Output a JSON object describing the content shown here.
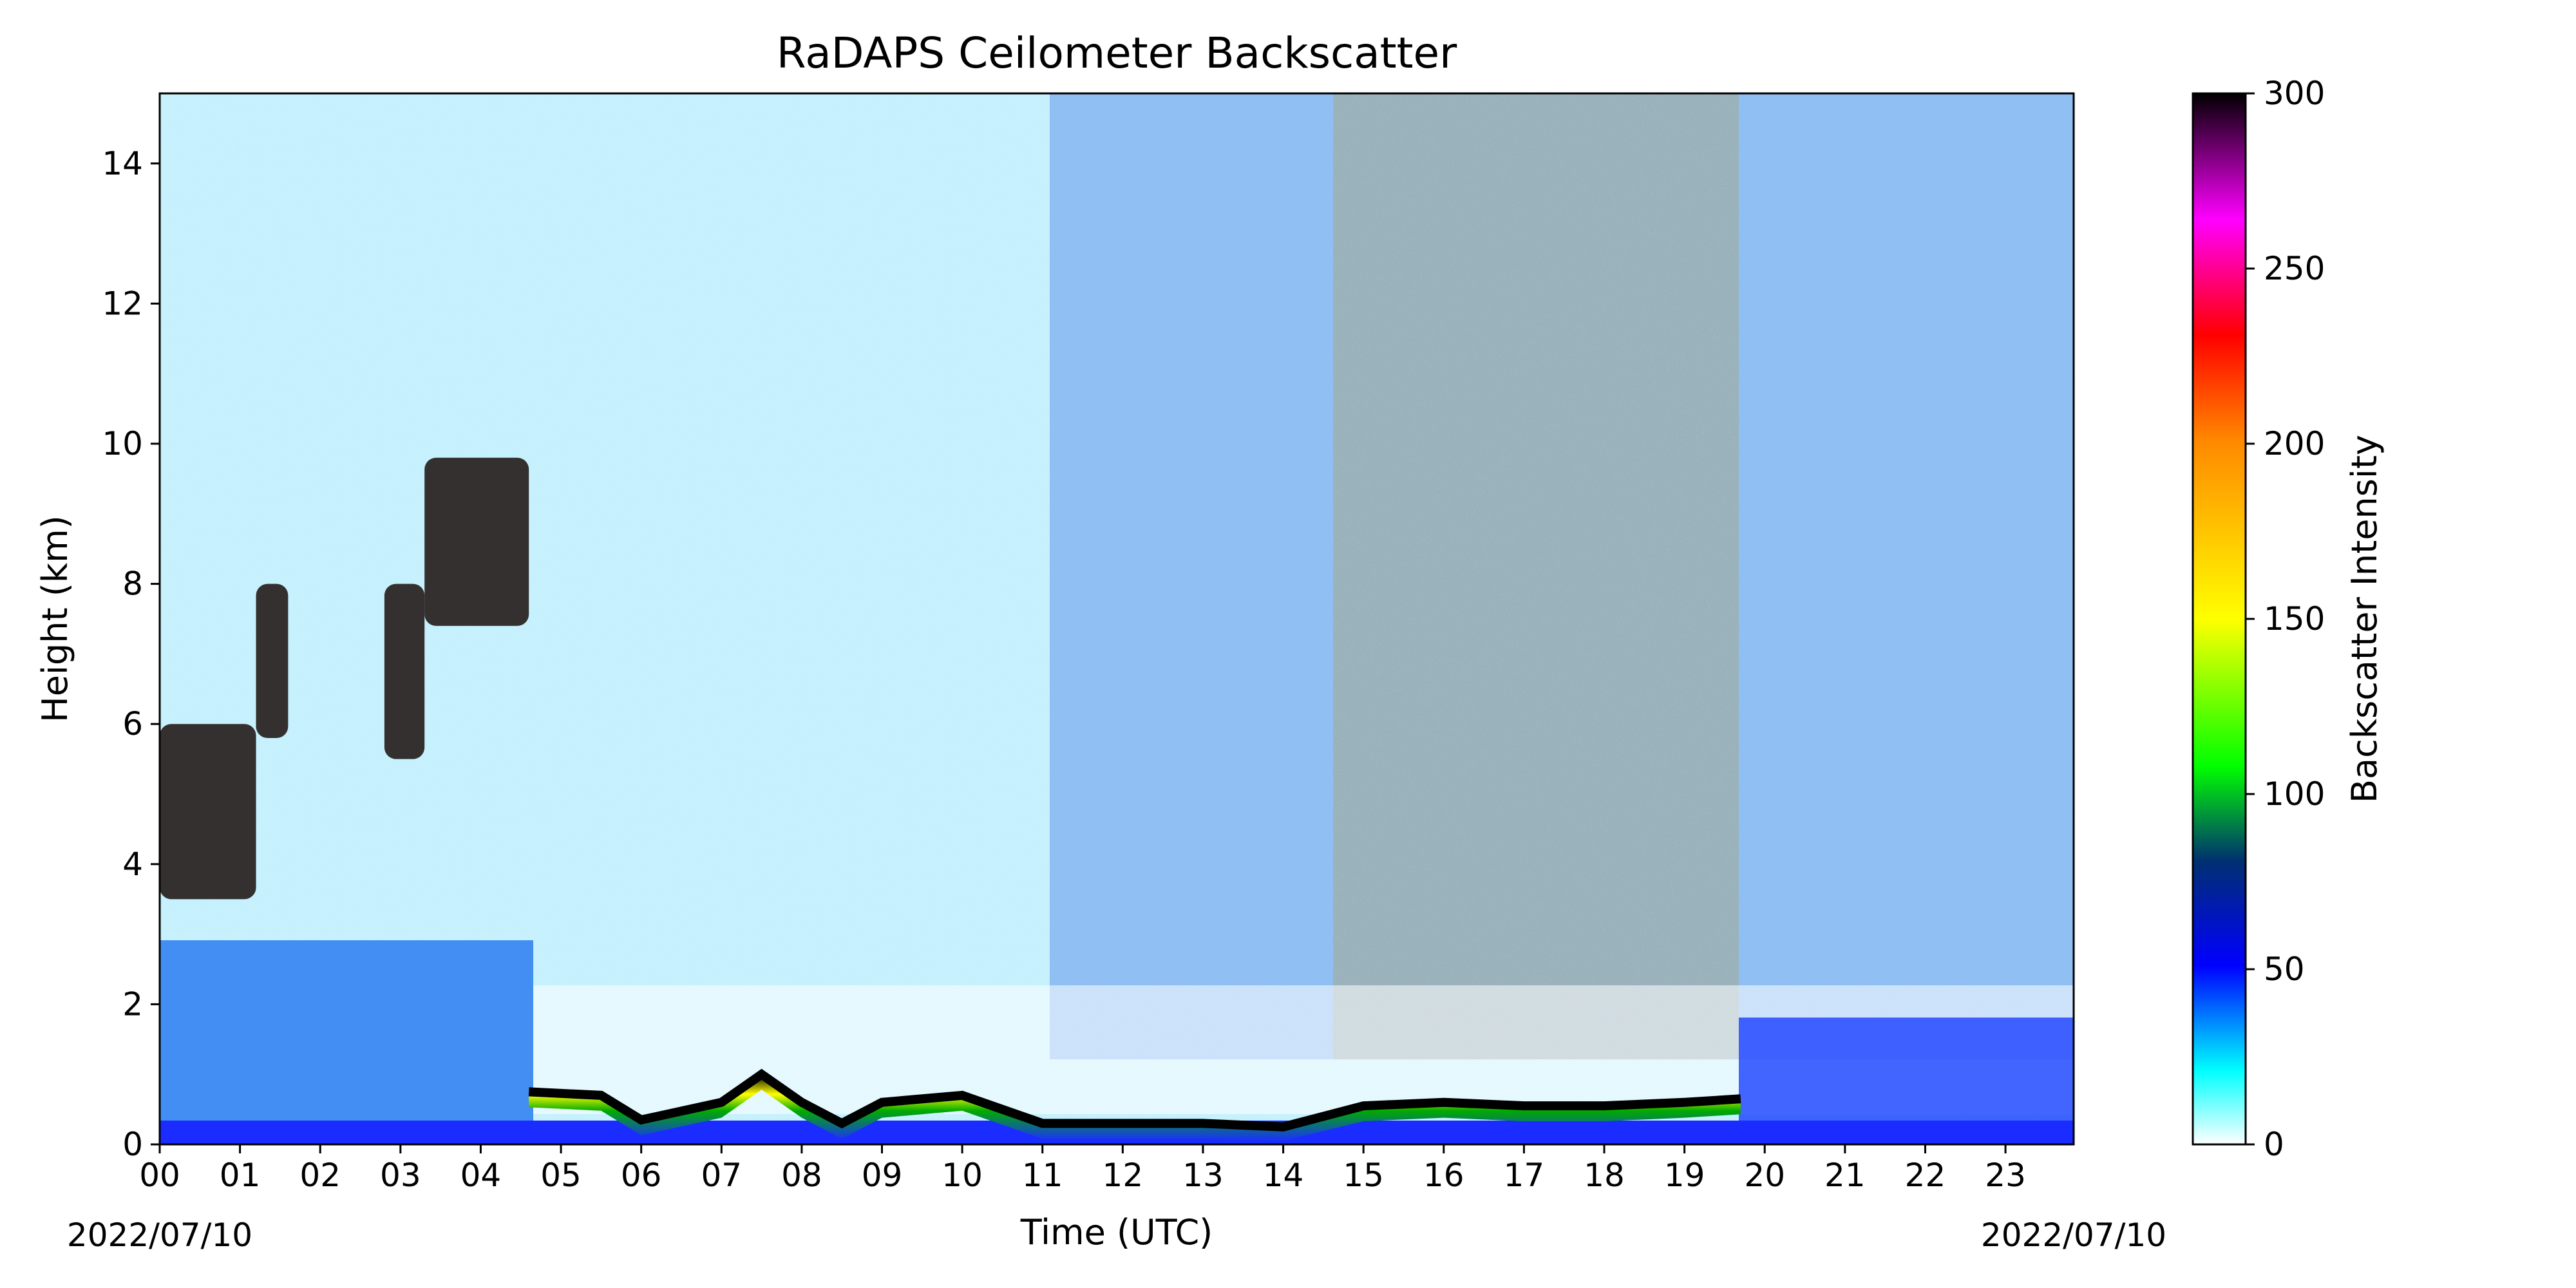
{
  "chart_data": {
    "type": "heatmap",
    "title": "RaDAPS Ceilometer Backscatter",
    "xlabel": "Time (UTC)",
    "ylabel": "Height (km)",
    "x_range_hours": [
      0,
      23.85
    ],
    "ylim": [
      0,
      15
    ],
    "x_ticks": [
      "00",
      "01",
      "02",
      "03",
      "04",
      "05",
      "06",
      "07",
      "08",
      "09",
      "10",
      "11",
      "12",
      "13",
      "14",
      "15",
      "16",
      "17",
      "18",
      "19",
      "20",
      "21",
      "22",
      "23"
    ],
    "y_ticks": [
      0,
      2,
      4,
      6,
      8,
      10,
      12,
      14
    ],
    "date_left": "2022/07/10",
    "date_right": "2022/07/10",
    "colorbar": {
      "label": "Backscatter Intensity",
      "range": [
        0,
        300
      ],
      "ticks": [
        0,
        50,
        100,
        150,
        200,
        250,
        300
      ],
      "colormap": [
        "#ffffff",
        "#00ffff",
        "#0000ff",
        "#00ff00",
        "#ffff00",
        "#ff0000",
        "#ff00ff",
        "#000000"
      ]
    },
    "features": {
      "boundary_layer_top_km": [
        {
          "hour": 4.6,
          "km": 0.75
        },
        {
          "hour": 5.5,
          "km": 0.7
        },
        {
          "hour": 6.0,
          "km": 0.35
        },
        {
          "hour": 7.0,
          "km": 0.6
        },
        {
          "hour": 7.5,
          "km": 1.0
        },
        {
          "hour": 8.0,
          "km": 0.6
        },
        {
          "hour": 8.5,
          "km": 0.3
        },
        {
          "hour": 9.0,
          "km": 0.6
        },
        {
          "hour": 10.0,
          "km": 0.7
        },
        {
          "hour": 11.0,
          "km": 0.3
        },
        {
          "hour": 12.0,
          "km": 0.3
        },
        {
          "hour": 13.0,
          "km": 0.3
        },
        {
          "hour": 14.0,
          "km": 0.25
        },
        {
          "hour": 15.0,
          "km": 0.55
        },
        {
          "hour": 16.0,
          "km": 0.6
        },
        {
          "hour": 17.0,
          "km": 0.55
        },
        {
          "hour": 18.0,
          "km": 0.55
        },
        {
          "hour": 19.0,
          "km": 0.6
        },
        {
          "hour": 19.7,
          "km": 0.65
        }
      ],
      "cloud_layers": [
        {
          "hour_start": 0.0,
          "hour_end": 1.2,
          "km_bottom": 3.5,
          "km_top": 6.0
        },
        {
          "hour_start": 1.2,
          "hour_end": 1.6,
          "km_bottom": 5.8,
          "km_top": 8.0
        },
        {
          "hour_start": 2.8,
          "hour_end": 3.3,
          "km_bottom": 5.5,
          "km_top": 8.0
        },
        {
          "hour_start": 3.3,
          "hour_end": 4.6,
          "km_bottom": 7.4,
          "km_top": 9.8
        }
      ]
    }
  }
}
